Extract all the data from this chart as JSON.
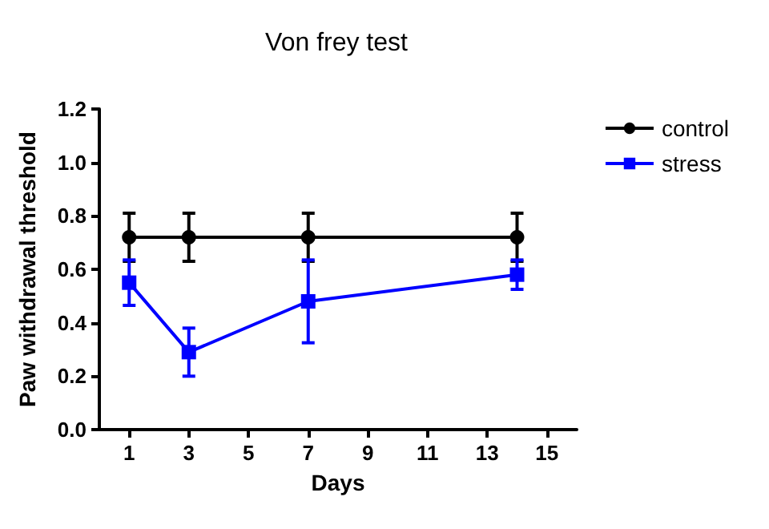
{
  "chart_data": {
    "type": "line",
    "title": "Von frey test",
    "xlabel": "Days",
    "ylabel": "Paw withdrawal threshold",
    "x": [
      1,
      3,
      7,
      14
    ],
    "series": [
      {
        "name": "control",
        "color": "#000000",
        "marker": "circle",
        "values": [
          0.72,
          0.72,
          0.72,
          0.72
        ],
        "errors": [
          0.09,
          0.09,
          0.09,
          0.09
        ]
      },
      {
        "name": "stress",
        "color": "#0000ff",
        "marker": "square",
        "values": [
          0.55,
          0.29,
          0.48,
          0.58
        ],
        "errors": [
          0.085,
          0.09,
          0.155,
          0.055
        ]
      }
    ],
    "xlim": [
      0,
      16
    ],
    "xticks": [
      1,
      3,
      5,
      7,
      9,
      11,
      13,
      15
    ],
    "ylim": [
      0,
      1.2
    ],
    "yticks": [
      {
        "value": 0,
        "label": "0.0"
      },
      0.2,
      0.4,
      0.6,
      0.8,
      {
        "value": 1,
        "label": "1.0"
      },
      1.2
    ],
    "legend": "top right",
    "grid": false,
    "line_style": "solid"
  }
}
